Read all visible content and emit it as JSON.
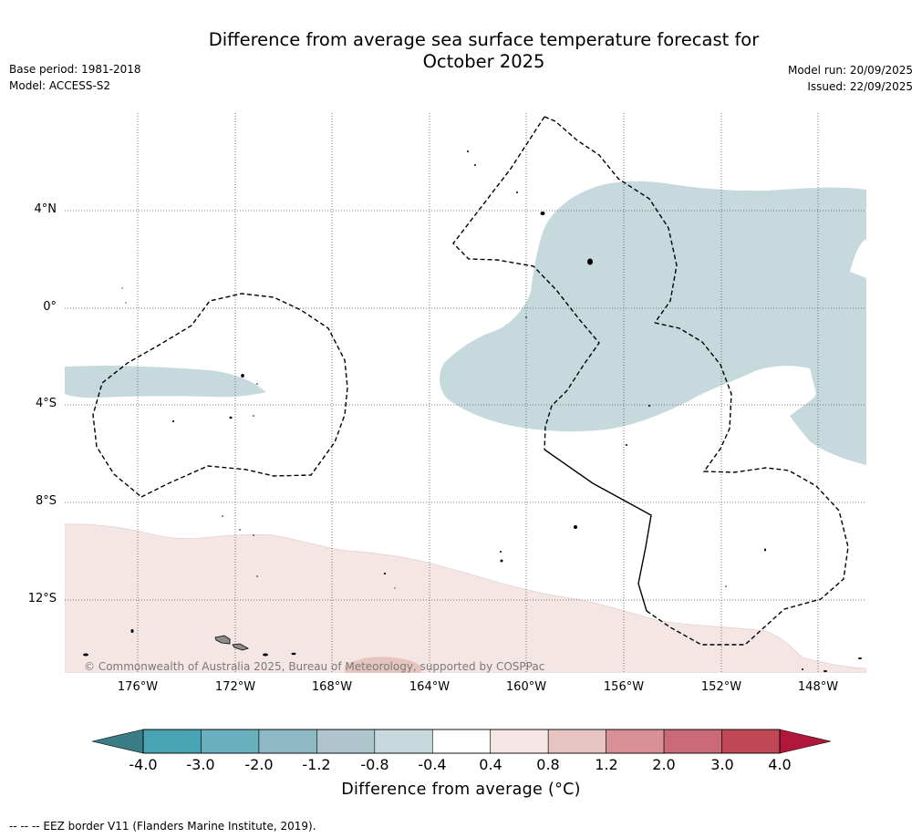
{
  "header": {
    "title_line1": "Difference from average sea surface temperature forecast for",
    "title_line2": "October 2025",
    "base_period": "Base period: 1981-2018",
    "model": "Model: ACCESS-S2",
    "model_run": "Model run: 20/09/2025",
    "issued": "Issued: 22/09/2025"
  },
  "map": {
    "longitude_labels": [
      "176°W",
      "172°W",
      "168°W",
      "164°W",
      "160°W",
      "156°W",
      "152°W",
      "148°W"
    ],
    "latitude_labels": [
      "4°N",
      "0°",
      "4°S",
      "8°S",
      "12°S"
    ],
    "copyright": "© Commonwealth of Australia 2025, Bureau of Meteorology, supported by COSPPac"
  },
  "colorbar": {
    "ticks": [
      "-4.0",
      "-3.0",
      "-2.0",
      "-1.2",
      "-0.8",
      "-0.4",
      "0.4",
      "0.8",
      "1.2",
      "2.0",
      "3.0",
      "4.0"
    ],
    "colors": [
      "#48a3b3",
      "#6aafbd",
      "#8db9c4",
      "#aec6cb",
      "#c6dadd",
      "#ffffff",
      "#f4e6e5",
      "#e6c5c0",
      "#d69096",
      "#ca6a76",
      "#c04756"
    ],
    "under_color": "#3a7d86",
    "over_color": "#b0173a",
    "title": "Difference from average (°C)"
  },
  "colors": {
    "cool_anomaly": "#c6dadd",
    "warm_anomaly": "#f4e6e5",
    "warm_patch": "#e6c5c0"
  },
  "footnote": "--  --  -- EEZ border V11 (Flanders Marine Institute, 2019)."
}
